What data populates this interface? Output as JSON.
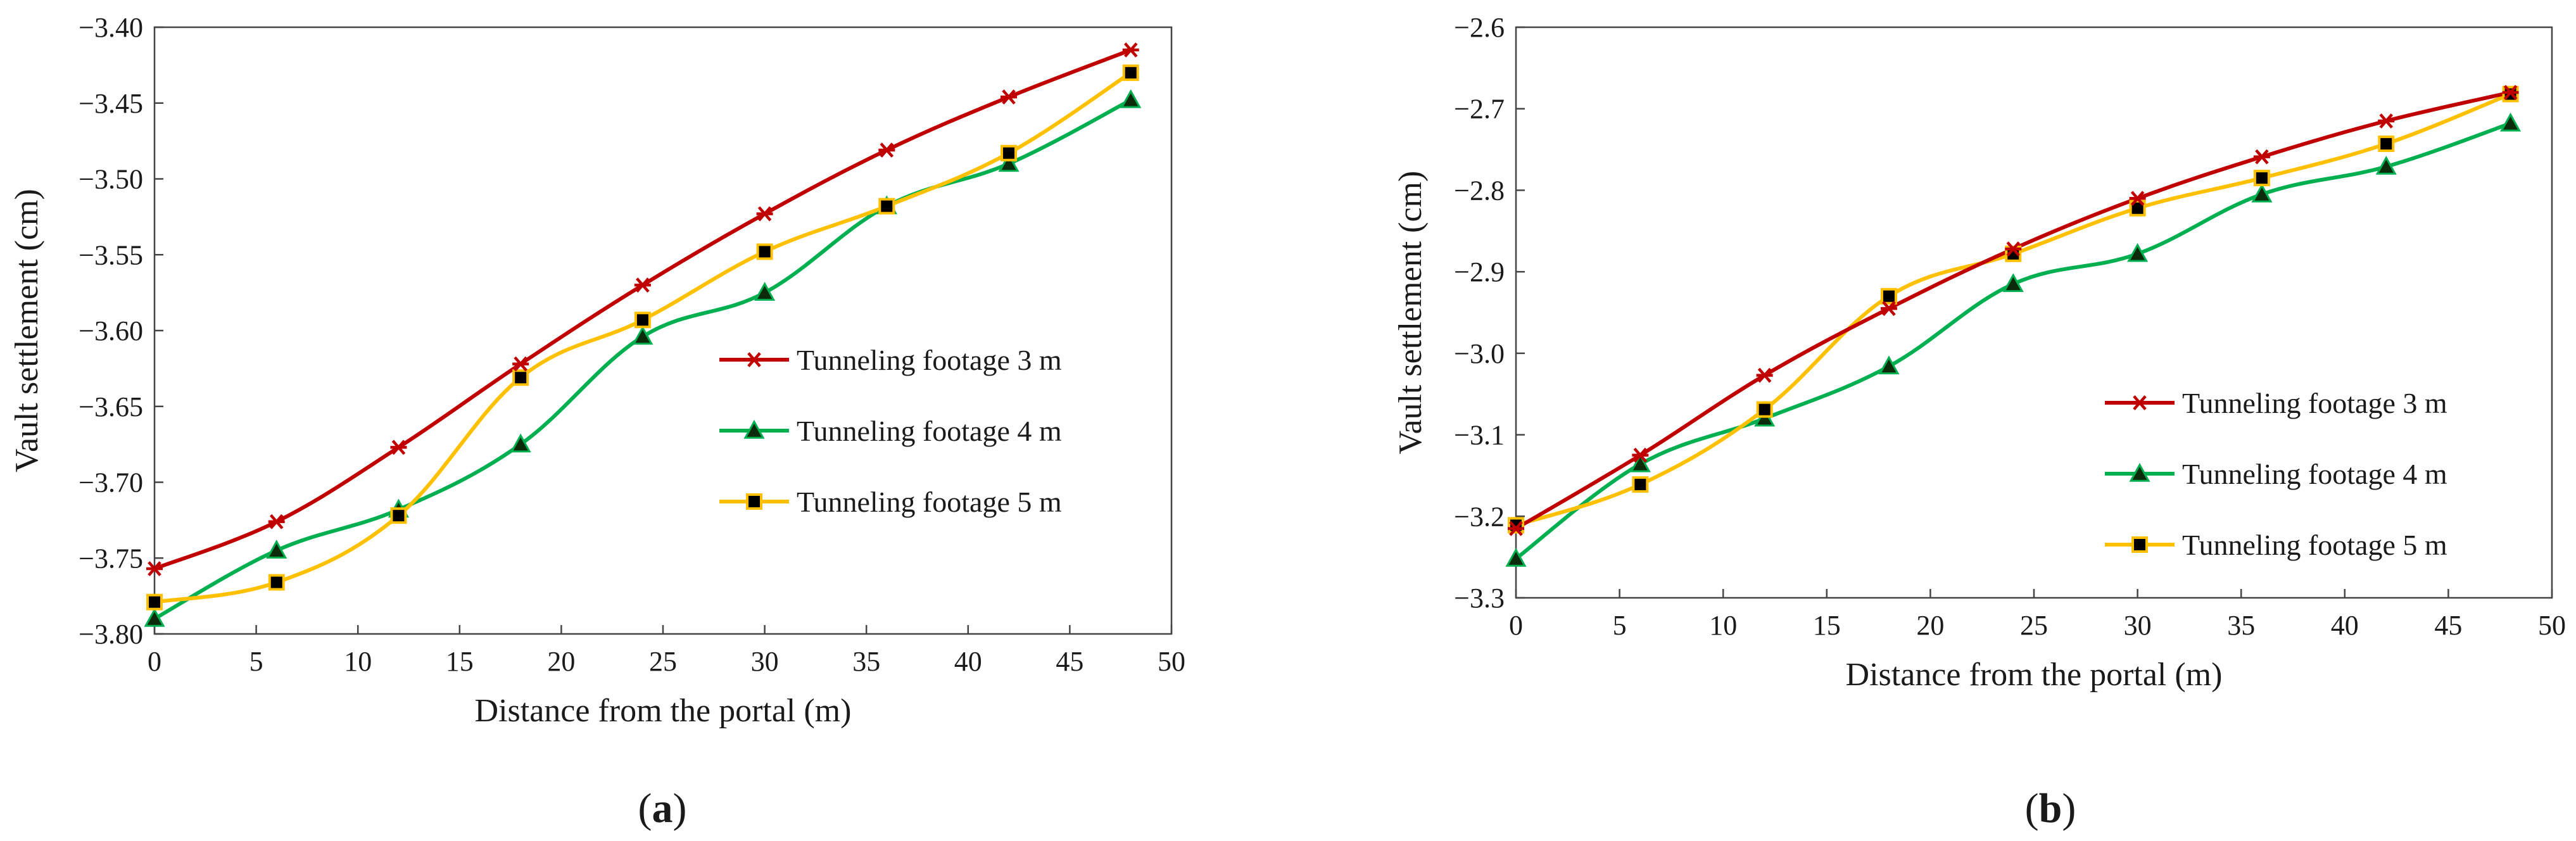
{
  "figure": {
    "panels": [
      {
        "label_open": "(",
        "label_letter": "a",
        "label_close": ")"
      },
      {
        "label_open": "(",
        "label_letter": "b",
        "label_close": ")"
      }
    ]
  },
  "chart_data": [
    {
      "type": "line",
      "panel": "a",
      "title": "",
      "xlabel": "Distance from the portal (m)",
      "ylabel": "Vault settlement (cm)",
      "xlim": [
        0,
        50
      ],
      "ylim": [
        -3.8,
        -3.4
      ],
      "xticks": [
        0,
        5,
        10,
        15,
        20,
        25,
        30,
        35,
        40,
        45,
        50
      ],
      "xtick_labels": [
        "0",
        "5",
        "10",
        "15",
        "20",
        "25",
        "30",
        "35",
        "40",
        "45",
        "50"
      ],
      "yticks": [
        -3.4,
        -3.45,
        -3.5,
        -3.55,
        -3.6,
        -3.65,
        -3.7,
        -3.75,
        -3.8
      ],
      "ytick_labels": [
        "−3.40",
        "−3.45",
        "−3.50",
        "−3.55",
        "−3.60",
        "−3.65",
        "−3.70",
        "−3.75",
        "−3.80"
      ],
      "grid": false,
      "legend_position": "center-right",
      "x": [
        0,
        6,
        12,
        18,
        24,
        30,
        36,
        42,
        48
      ],
      "series": [
        {
          "name": "Tunneling footage 3 m",
          "color": "#c00000",
          "marker": "star",
          "values": [
            -3.757,
            -3.726,
            -3.677,
            -3.622,
            -3.57,
            -3.523,
            -3.481,
            -3.446,
            -3.415
          ]
        },
        {
          "name": "Tunneling footage 4 m",
          "color": "#00b050",
          "marker": "triangle",
          "values": [
            -3.79,
            -3.745,
            -3.718,
            -3.675,
            -3.604,
            -3.575,
            -3.518,
            -3.49,
            -3.448
          ]
        },
        {
          "name": "Tunneling footage 5 m",
          "color": "#ffc000",
          "marker": "square",
          "values": [
            -3.779,
            -3.766,
            -3.722,
            -3.631,
            -3.593,
            -3.548,
            -3.518,
            -3.483,
            -3.43
          ]
        }
      ]
    },
    {
      "type": "line",
      "panel": "b",
      "title": "",
      "xlabel": "Distance from the portal (m)",
      "ylabel": "Vault settlement (cm)",
      "xlim": [
        0,
        50
      ],
      "ylim": [
        -3.3,
        -2.6
      ],
      "xticks": [
        0,
        5,
        10,
        15,
        20,
        25,
        30,
        35,
        40,
        45,
        50
      ],
      "xtick_labels": [
        "0",
        "5",
        "10",
        "15",
        "20",
        "25",
        "30",
        "35",
        "40",
        "45",
        "50"
      ],
      "yticks": [
        -2.6,
        -2.7,
        -2.8,
        -2.9,
        -3.0,
        -3.1,
        -3.2,
        -3.3
      ],
      "ytick_labels": [
        "−2.6",
        "−2.7",
        "−2.8",
        "−2.9",
        "−3.0",
        "−3.1",
        "−3.2",
        "−3.3"
      ],
      "grid": false,
      "legend_position": "bottom-right",
      "x": [
        0,
        6,
        12,
        18,
        24,
        30,
        36,
        42,
        48
      ],
      "series": [
        {
          "name": "Tunneling footage 3 m",
          "color": "#c00000",
          "marker": "star",
          "values": [
            -3.215,
            -3.125,
            -3.027,
            -2.945,
            -2.872,
            -2.81,
            -2.759,
            -2.715,
            -2.68
          ]
        },
        {
          "name": "Tunneling footage 4 m",
          "color": "#00b050",
          "marker": "triangle",
          "values": [
            -3.252,
            -3.136,
            -3.08,
            -3.016,
            -2.915,
            -2.878,
            -2.805,
            -2.771,
            -2.718
          ]
        },
        {
          "name": "Tunneling footage 5 m",
          "color": "#ffc000",
          "marker": "square",
          "values": [
            -3.211,
            -3.161,
            -3.069,
            -2.93,
            -2.878,
            -2.822,
            -2.785,
            -2.743,
            -2.682
          ]
        }
      ]
    }
  ]
}
